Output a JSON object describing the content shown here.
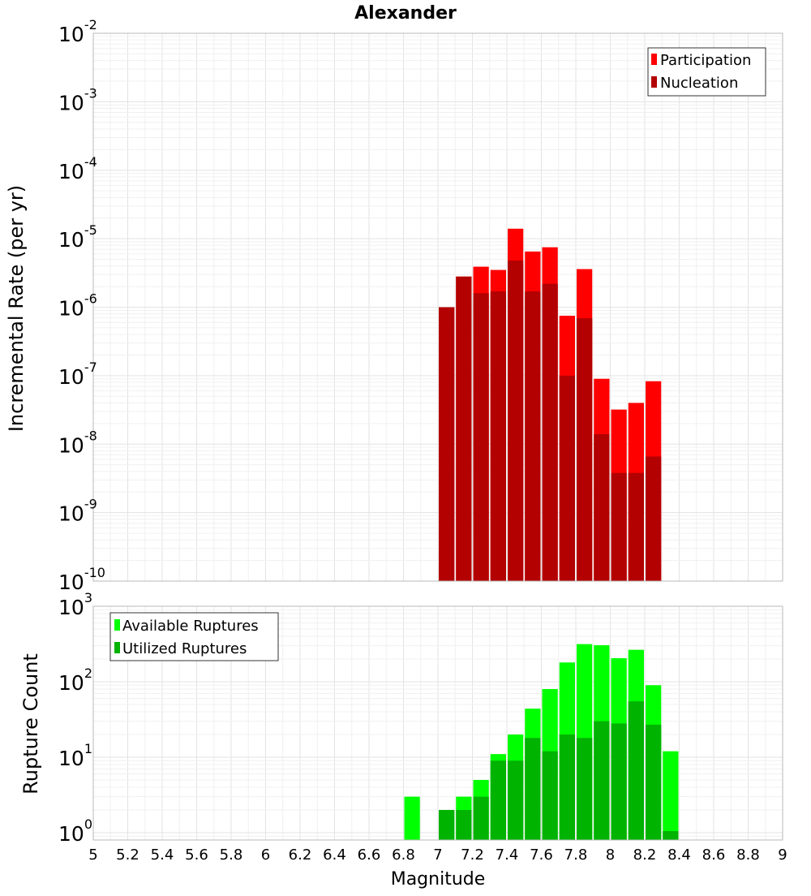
{
  "chart_data": [
    {
      "type": "bar",
      "title": "Alexander",
      "ylabel": "Incremental Rate (per yr)",
      "xlabel": "",
      "y_scale": "log",
      "ylim_exponents": [
        -10,
        -2
      ],
      "xlim": [
        5,
        9
      ],
      "grid": true,
      "legend_position": "top-right",
      "overlay": true,
      "bar_width": 0.1,
      "series": [
        {
          "name": "Participation",
          "color": "#ff0000",
          "x": [
            7.05,
            7.15,
            7.25,
            7.35,
            7.45,
            7.55,
            7.65,
            7.75,
            7.85,
            7.95,
            8.05,
            8.15,
            8.25
          ],
          "values": [
            1e-06,
            2.8e-06,
            3.9e-06,
            3.5e-06,
            1.4e-05,
            6.5e-06,
            7.5e-06,
            7.5e-07,
            3.6e-06,
            9e-08,
            3.2e-08,
            4e-08,
            8.3e-08
          ]
        },
        {
          "name": "Nucleation",
          "color": "#b30000",
          "x": [
            7.05,
            7.15,
            7.25,
            7.35,
            7.45,
            7.55,
            7.65,
            7.75,
            7.85,
            7.95,
            8.05,
            8.15,
            8.25
          ],
          "values": [
            1e-06,
            2.8e-06,
            1.6e-06,
            1.7e-06,
            4.8e-06,
            1.7e-06,
            2.2e-06,
            1e-07,
            6.9e-07,
            1.4e-08,
            3.8e-09,
            3.8e-09,
            6.6e-09
          ]
        }
      ]
    },
    {
      "type": "bar",
      "title": "",
      "ylabel": "Rupture Count",
      "xlabel": "Magnitude",
      "y_scale": "log",
      "ylim_exponents": [
        0,
        3
      ],
      "ylim": [
        0.8,
        1000
      ],
      "xlim": [
        5,
        9
      ],
      "x_ticks": [
        "5",
        "5.2",
        "5.4",
        "5.6",
        "5.8",
        "6",
        "6.2",
        "6.4",
        "6.6",
        "6.8",
        "7",
        "7.2",
        "7.4",
        "7.6",
        "7.8",
        "8",
        "8.2",
        "8.4",
        "8.6",
        "8.8",
        "9"
      ],
      "grid": true,
      "legend_position": "top-left",
      "overlay": true,
      "bar_width": 0.1,
      "series": [
        {
          "name": "Available Ruptures",
          "color": "#00ff00",
          "x": [
            6.85,
            7.05,
            7.15,
            7.25,
            7.35,
            7.45,
            7.55,
            7.65,
            7.75,
            7.85,
            7.95,
            8.05,
            8.15,
            8.25,
            8.35
          ],
          "values": [
            3,
            2,
            3,
            5,
            11,
            20,
            44,
            80,
            180,
            315,
            305,
            205,
            265,
            90,
            12
          ]
        },
        {
          "name": "Utilized Ruptures",
          "color": "#00b300",
          "x": [
            6.85,
            7.05,
            7.15,
            7.25,
            7.35,
            7.45,
            7.55,
            7.65,
            7.75,
            7.85,
            7.95,
            8.05,
            8.15,
            8.25,
            8.35
          ],
          "values": [
            0,
            2,
            2,
            3,
            9,
            9,
            18,
            12,
            20,
            18,
            30,
            28,
            55,
            27,
            1.05
          ]
        }
      ]
    }
  ]
}
